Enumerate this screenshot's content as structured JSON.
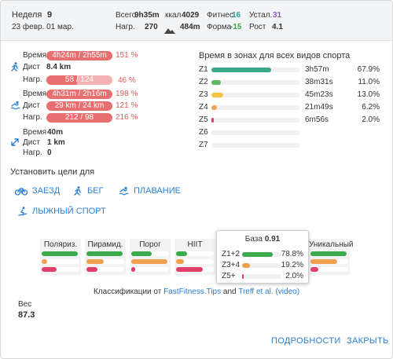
{
  "header": {
    "week_label": "Неделя",
    "week_num": "9",
    "date_range": "23 февр. 01 мар.",
    "total_label": "Всего",
    "total_val": "9h35m",
    "load_label": "Нагр.",
    "load_val": "270",
    "kcal_label": "ккал",
    "kcal_val": "4029",
    "elev_val": "484m",
    "fitness_label": "Фитнес",
    "fitness_val": "16",
    "form_label": "Форма",
    "form_val": "-15",
    "fatigue_label": "Устал.",
    "fatigue_val": "31",
    "ramp_label": "Рост",
    "ramp_val": "4.1"
  },
  "sports": {
    "run": {
      "time_label": "Время",
      "time_val": "4h24m / 2h55m",
      "time_pct": "151 %",
      "dist_label": "Дист",
      "dist_val": "8.4 km",
      "load_label": "Нагр.",
      "load_val": "58 / 124",
      "load_pct": "46 %",
      "load_fill": 0.46
    },
    "swim": {
      "time_label": "Время",
      "time_val": "4h31m / 2h16m",
      "time_pct": "198 %",
      "dist_label": "Дист",
      "dist_val": "29 km / 24 km",
      "dist_pct": "121 %",
      "load_label": "Нагр.",
      "load_val": "212 / 98",
      "load_pct": "216 %"
    },
    "other": {
      "time_label": "Время",
      "time_val": "40m",
      "dist_label": "Дист",
      "dist_val": "1 km",
      "load_label": "Нагр.",
      "load_val": "0"
    }
  },
  "zones": {
    "title": "Время в зонах для всех видов спорта",
    "items": [
      {
        "label": "Z1",
        "time": "3h57m",
        "pct": "67.9%",
        "fill": 0.679,
        "color": "#3aa88a"
      },
      {
        "label": "Z2",
        "time": "38m31s",
        "pct": "11.0%",
        "fill": 0.11,
        "color": "#5cb85c"
      },
      {
        "label": "Z3",
        "time": "45m23s",
        "pct": "13.0%",
        "fill": 0.13,
        "color": "#f5c542"
      },
      {
        "label": "Z4",
        "time": "21m49s",
        "pct": "6.2%",
        "fill": 0.062,
        "color": "#f0a050"
      },
      {
        "label": "Z5",
        "time": "6m56s",
        "pct": "2.0%",
        "fill": 0.02,
        "color": "#e0406a"
      },
      {
        "label": "Z6",
        "time": "",
        "pct": "",
        "fill": 0,
        "color": "#cccccc"
      },
      {
        "label": "Z7",
        "time": "",
        "pct": "",
        "fill": 0,
        "color": "#cccccc"
      }
    ]
  },
  "goals": {
    "title": "Установить цели для",
    "ride": "ЗАЕЗД",
    "run": "БЕГ",
    "swim": "ПЛАВАНИЕ",
    "ski": "ЛЫЖНЫЙ СПОРТ"
  },
  "classification": {
    "cards": [
      "Поляриз.",
      "Пирамид.",
      "Порог",
      "HIIT",
      "Уникальный"
    ],
    "base": {
      "title": "База",
      "value": "0.91",
      "rows": [
        {
          "label": "Z1+2",
          "pct": "78.8%",
          "fill": 0.788,
          "color": "#3aaa4a"
        },
        {
          "label": "Z3+4",
          "pct": "19.2%",
          "fill": 0.192,
          "color": "#f0a050"
        },
        {
          "label": "Z5+",
          "pct": "2.0%",
          "fill": 0.02,
          "color": "#e0406a"
        }
      ]
    },
    "credit_prefix": "Классификации от",
    "credit_link1": "FastFitness.Tips",
    "credit_and": "and",
    "credit_link2": "Treff et al.",
    "credit_video": "(video)"
  },
  "weight": {
    "label": "Вес",
    "value": "87.3"
  },
  "footer": {
    "details": "ПОДРОБНОСТИ",
    "close": "ЗАКРЫТЬ"
  },
  "colors": {
    "accent": "#2a7fd4",
    "pill": "#e86f6f",
    "fitness": "#2e9a9a",
    "form": "#3aaa4a",
    "fatigue": "#8a55c8"
  }
}
